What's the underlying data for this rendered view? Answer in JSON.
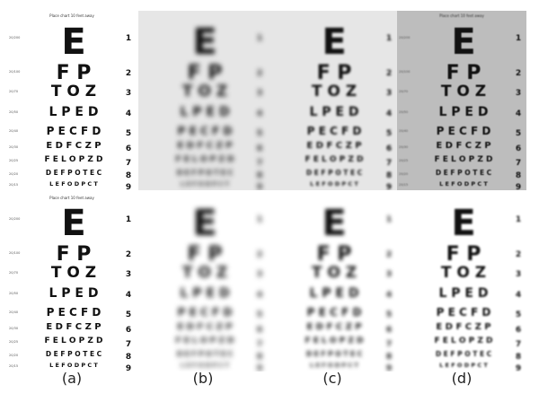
{
  "caption": "Place chart 10 feet away",
  "chart_lines": [
    {
      "number": "1",
      "letters": "E",
      "snellen": "20/200"
    },
    {
      "number": "2",
      "letters": "F P",
      "snellen": "20/100"
    },
    {
      "number": "3",
      "letters": "T O Z",
      "snellen": "20/70"
    },
    {
      "number": "4",
      "letters": "L P E D",
      "snellen": "20/50"
    },
    {
      "number": "5",
      "letters": "P E C F D",
      "snellen": "20/40"
    },
    {
      "number": "6",
      "letters": "E D F C Z P",
      "snellen": "20/30"
    },
    {
      "number": "7",
      "letters": "F E L O P Z D",
      "snellen": "20/25"
    },
    {
      "number": "8",
      "letters": "D E F P O T E C",
      "snellen": "20/20"
    },
    {
      "number": "9",
      "letters": "L E F O D P C T",
      "snellen": "20/15"
    }
  ],
  "panels": [
    {
      "id": "a-top",
      "row": "top",
      "col": "a",
      "blur": 0,
      "background": "white",
      "show_snellen": true,
      "show_caption": true
    },
    {
      "id": "b-top",
      "row": "top",
      "col": "b",
      "blur": 2.6,
      "background": "lightgray",
      "show_snellen": false,
      "show_caption": false
    },
    {
      "id": "c-top",
      "row": "top",
      "col": "c",
      "blur": 1.2,
      "background": "lightgray",
      "show_snellen": false,
      "show_caption": false
    },
    {
      "id": "d-top",
      "row": "top",
      "col": "d",
      "blur": 0.4,
      "background": "gray",
      "show_snellen": true,
      "show_caption": true
    },
    {
      "id": "a-bottom",
      "row": "bottom",
      "col": "a",
      "blur": 0,
      "background": "white",
      "show_snellen": true,
      "show_caption": true
    },
    {
      "id": "b-bottom",
      "row": "bottom",
      "col": "b",
      "blur": 2.8,
      "background": "white",
      "show_snellen": false,
      "show_caption": false
    },
    {
      "id": "c-bottom",
      "row": "bottom",
      "col": "c",
      "blur": 2.0,
      "background": "white",
      "show_snellen": false,
      "show_caption": false
    },
    {
      "id": "d-bottom",
      "row": "bottom",
      "col": "d",
      "blur": 1.0,
      "background": "white",
      "show_snellen": false,
      "show_caption": false
    }
  ],
  "labels": [
    "(a)",
    "(b)",
    "(c)",
    "(d)"
  ]
}
